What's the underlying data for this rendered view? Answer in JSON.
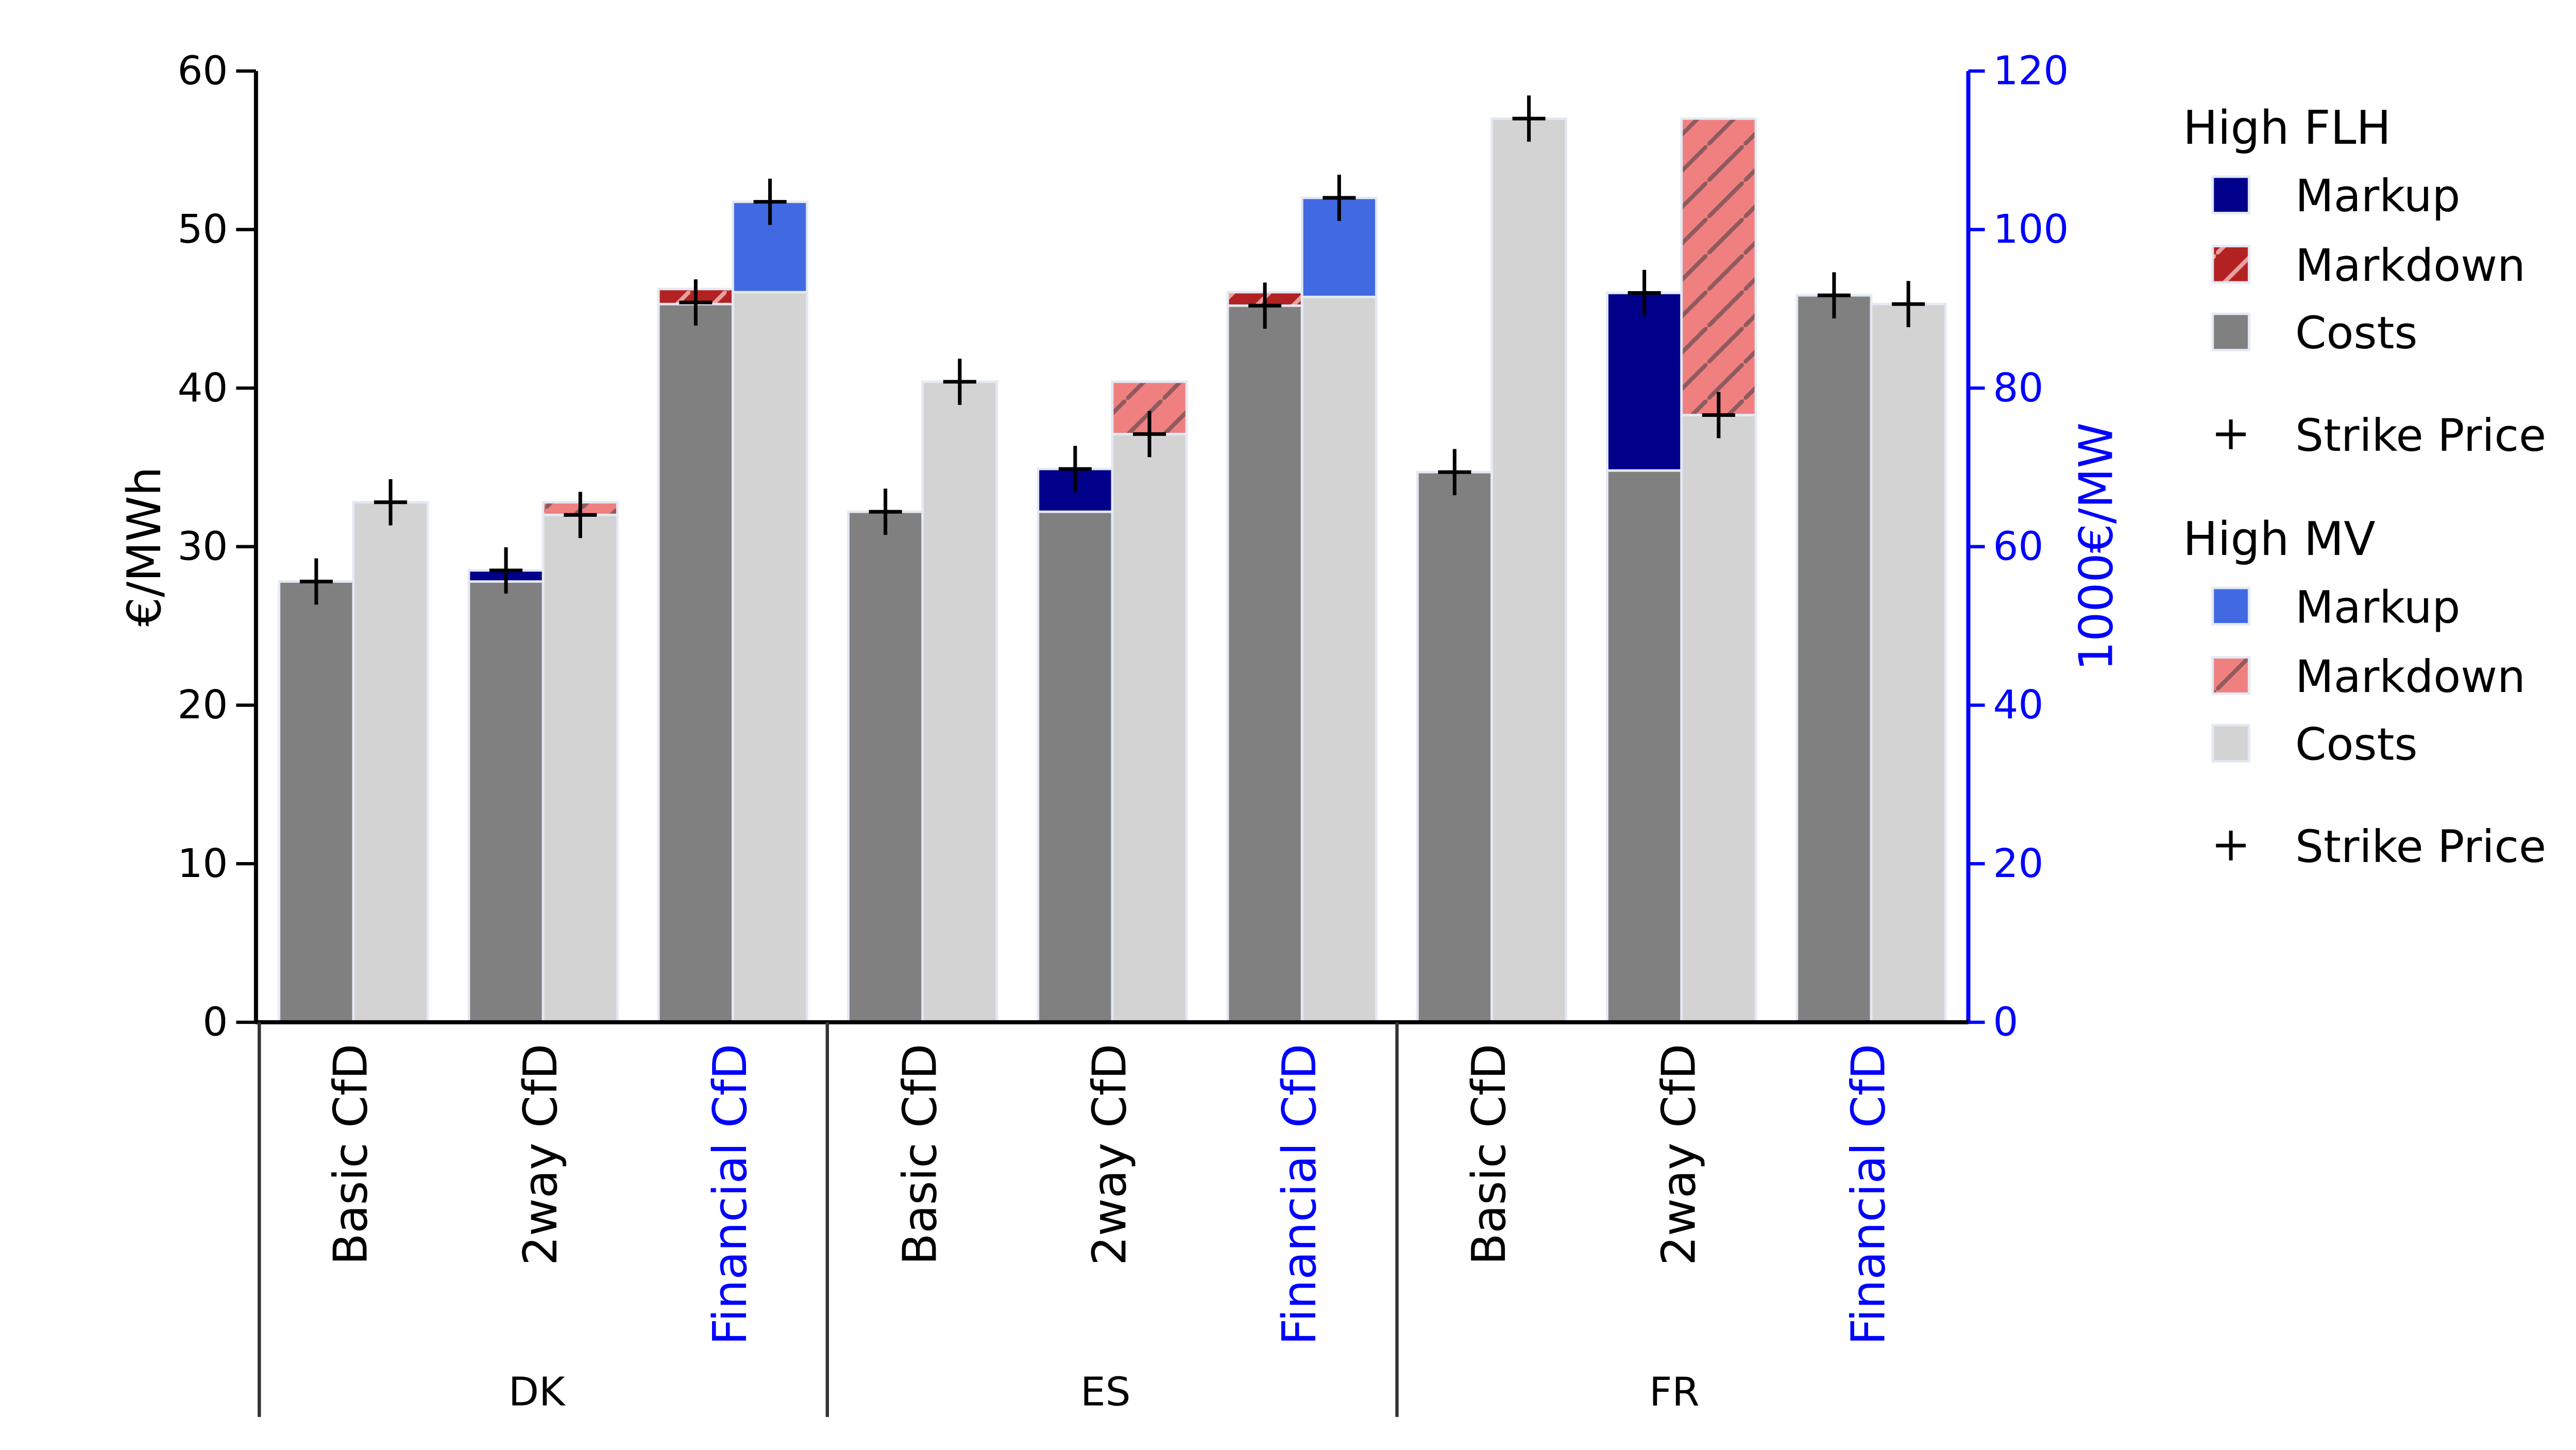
{
  "chart_data": {
    "type": "bar",
    "title": "",
    "ylabel_left": "€/MWh",
    "ylabel_right": "1000€/MW",
    "ylim_left": [
      0,
      60
    ],
    "ylim_right": [
      0,
      120
    ],
    "yticks_left": [
      "0",
      "10",
      "20",
      "30",
      "40",
      "50",
      "60"
    ],
    "yticks_right": [
      "0",
      "20",
      "40",
      "60",
      "80",
      "100",
      "120"
    ],
    "groups": [
      "DK",
      "ES",
      "FR"
    ],
    "schemes": [
      "Basic CfD",
      "2way CfD",
      "Financial CfD"
    ],
    "scheme_axis": [
      "left",
      "left",
      "right"
    ],
    "legend": {
      "placement": "right",
      "sections": [
        {
          "title": "High FLH",
          "items": [
            "Markup",
            "Markdown",
            "Costs",
            "Strike Price"
          ]
        },
        {
          "title": "High MV",
          "items": [
            "Markup",
            "Markdown",
            "Costs",
            "Strike Price"
          ]
        }
      ]
    },
    "colors": {
      "flh_markup": "#00008b",
      "flh_markdown": "#b22222",
      "flh_costs": "#808080",
      "mv_markup": "#4169e1",
      "mv_markdown": "#f08080",
      "mv_costs": "#d3d3d3",
      "right_axis": "#0000ff"
    },
    "bars": [
      {
        "group": "DK",
        "scheme": "Basic CfD",
        "scenario": "High FLH",
        "costs": 27.8,
        "markup": 0,
        "markdown": 0,
        "strike": 27.8
      },
      {
        "group": "DK",
        "scheme": "Basic CfD",
        "scenario": "High MV",
        "costs": 32.8,
        "markup": 0,
        "markdown": 0,
        "strike": 32.8
      },
      {
        "group": "DK",
        "scheme": "2way CfD",
        "scenario": "High FLH",
        "costs": 27.8,
        "markup": 0.7,
        "markdown": 0,
        "strike": 28.5
      },
      {
        "group": "DK",
        "scheme": "2way CfD",
        "scenario": "High MV",
        "costs": 32.0,
        "markup": 0,
        "markdown": 0.8,
        "strike": 32.0
      },
      {
        "group": "DK",
        "scheme": "Financial CfD",
        "scenario": "High FLH",
        "costs": 90.6,
        "markup": 0,
        "markdown": 1.9,
        "strike": 90.8
      },
      {
        "group": "DK",
        "scheme": "Financial CfD",
        "scenario": "High MV",
        "costs": 92.1,
        "markup": 11.4,
        "markdown": 0,
        "strike": 103.5
      },
      {
        "group": "ES",
        "scheme": "Basic CfD",
        "scenario": "High FLH",
        "costs": 32.2,
        "markup": 0,
        "markdown": 0,
        "strike": 32.2
      },
      {
        "group": "ES",
        "scheme": "Basic CfD",
        "scenario": "High MV",
        "costs": 40.4,
        "markup": 0,
        "markdown": 0,
        "strike": 40.4
      },
      {
        "group": "ES",
        "scheme": "2way CfD",
        "scenario": "High FLH",
        "costs": 32.2,
        "markup": 2.7,
        "markdown": 0,
        "strike": 34.9
      },
      {
        "group": "ES",
        "scheme": "2way CfD",
        "scenario": "High MV",
        "costs": 37.1,
        "markup": 0,
        "markdown": 3.3,
        "strike": 37.1
      },
      {
        "group": "ES",
        "scheme": "Financial CfD",
        "scenario": "High FLH",
        "costs": 90.4,
        "markup": 0,
        "markdown": 1.7,
        "strike": 90.4
      },
      {
        "group": "ES",
        "scheme": "Financial CfD",
        "scenario": "High MV",
        "costs": 91.5,
        "markup": 12.5,
        "markdown": 0,
        "strike": 104.0
      },
      {
        "group": "FR",
        "scheme": "Basic CfD",
        "scenario": "High FLH",
        "costs": 34.7,
        "markup": 0,
        "markdown": 0,
        "strike": 34.7
      },
      {
        "group": "FR",
        "scheme": "Basic CfD",
        "scenario": "High MV",
        "costs": 57.0,
        "markup": 0,
        "markdown": 0,
        "strike": 57.0
      },
      {
        "group": "FR",
        "scheme": "2way CfD",
        "scenario": "High FLH",
        "costs": 34.8,
        "markup": 11.2,
        "markdown": 0,
        "strike": 46.0
      },
      {
        "group": "FR",
        "scheme": "2way CfD",
        "scenario": "High MV",
        "costs": 38.3,
        "markup": 0,
        "markdown": 18.7,
        "strike": 38.3
      },
      {
        "group": "FR",
        "scheme": "Financial CfD",
        "scenario": "High FLH",
        "costs": 91.7,
        "markup": 0,
        "markdown": 0,
        "strike": 91.7
      },
      {
        "group": "FR",
        "scheme": "Financial CfD",
        "scenario": "High MV",
        "costs": 90.6,
        "markup": 0,
        "markdown": 0,
        "strike": 90.6
      }
    ]
  }
}
